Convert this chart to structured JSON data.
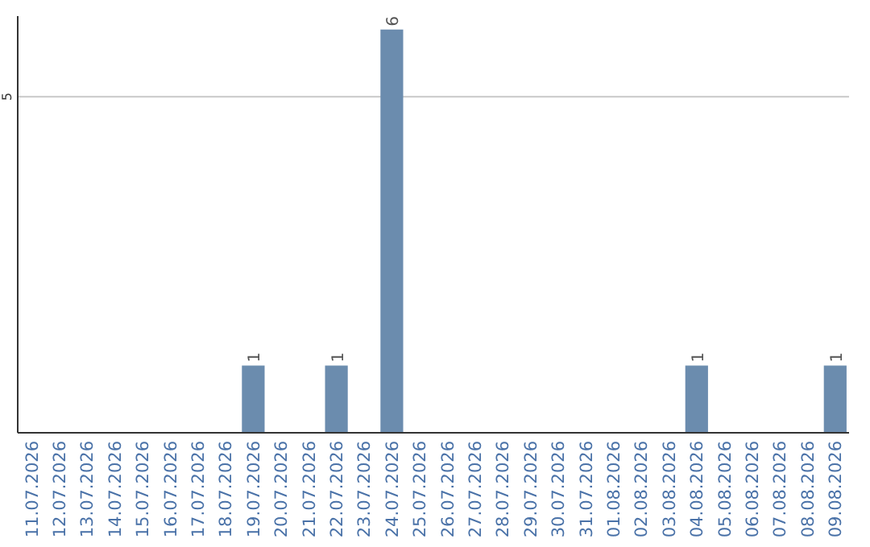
{
  "chart_data": {
    "type": "bar",
    "categories": [
      "11.07.2026",
      "12.07.2026",
      "13.07.2026",
      "14.07.2026",
      "15.07.2026",
      "16.07.2026",
      "17.07.2026",
      "18.07.2026",
      "19.07.2026",
      "20.07.2026",
      "21.07.2026",
      "22.07.2026",
      "23.07.2026",
      "24.07.2026",
      "25.07.2026",
      "26.07.2026",
      "27.07.2026",
      "28.07.2026",
      "29.07.2026",
      "30.07.2026",
      "31.07.2026",
      "01.08.2026",
      "02.08.2026",
      "03.08.2026",
      "04.08.2026",
      "05.08.2026",
      "06.08.2026",
      "07.08.2026",
      "08.08.2026",
      "09.08.2026"
    ],
    "values": [
      0,
      0,
      0,
      0,
      0,
      0,
      0,
      0,
      1,
      0,
      0,
      1,
      0,
      6,
      0,
      0,
      0,
      0,
      0,
      0,
      0,
      0,
      0,
      0,
      1,
      0,
      0,
      0,
      0,
      1
    ],
    "value_labels": [
      null,
      null,
      null,
      null,
      null,
      null,
      null,
      null,
      "1",
      null,
      null,
      "1",
      null,
      "6",
      null,
      null,
      null,
      null,
      null,
      null,
      null,
      null,
      null,
      null,
      "1",
      null,
      null,
      null,
      null,
      "1"
    ],
    "color": "#6b8cae",
    "ylim": [
      0,
      6.2
    ],
    "yticks": [
      5
    ],
    "grid": "y"
  }
}
